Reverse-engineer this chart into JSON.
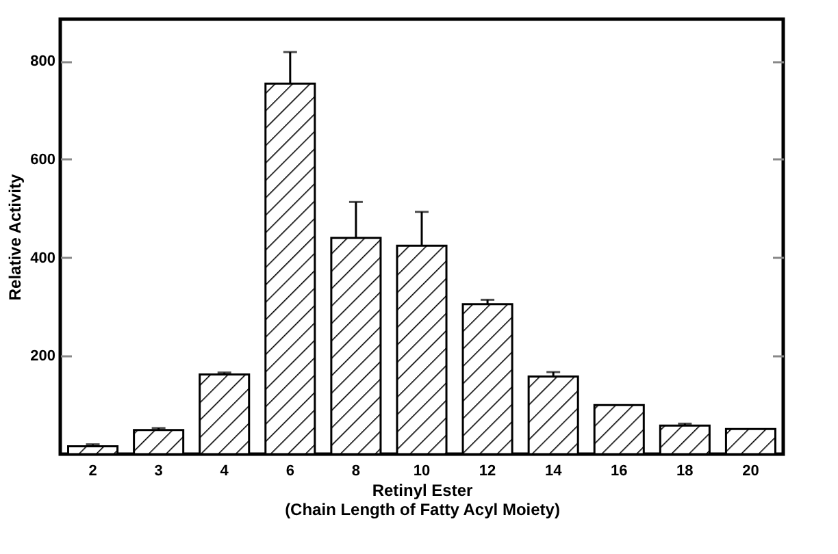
{
  "chart_data": {
    "type": "bar",
    "xlabel": "Retinyl Ester\n(Chain Length of Fatty Acyl Moiety)",
    "ylabel": "Relative Activity",
    "categories": [
      "2",
      "3",
      "4",
      "6",
      "8",
      "10",
      "12",
      "14",
      "16",
      "18",
      "20"
    ],
    "values": [
      16,
      49,
      162,
      754,
      440,
      424,
      305,
      158,
      100,
      58,
      51
    ],
    "errors": [
      [
        16,
        20
      ],
      [
        49,
        53
      ],
      [
        162,
        166
      ],
      [
        754,
        818
      ],
      [
        440,
        513
      ],
      [
        424,
        493
      ],
      [
        305,
        314
      ],
      [
        158,
        167
      ],
      null,
      [
        58,
        62
      ],
      null
    ],
    "color": "#000000",
    "ylim": [
      0,
      885
    ],
    "yticks": [
      200,
      400,
      600,
      800
    ],
    "grid": false
  }
}
